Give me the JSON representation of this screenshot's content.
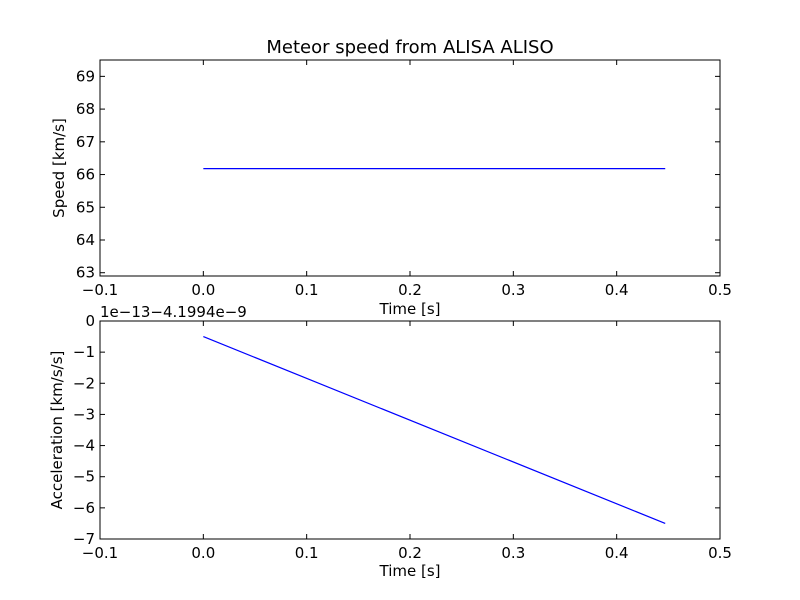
{
  "chart_data": [
    {
      "type": "line",
      "title": "Meteor speed from  ALISA ALISO",
      "xlabel": "Time [s]",
      "ylabel": "Speed [km/s]",
      "xlim": [
        -0.1,
        0.5
      ],
      "ylim": [
        62.9,
        69.5
      ],
      "xticks": [
        -0.1,
        0.0,
        0.1,
        0.2,
        0.3,
        0.4,
        0.5
      ],
      "xtick_labels": [
        "−0.1",
        "0.0",
        "0.1",
        "0.2",
        "0.3",
        "0.4",
        "0.5"
      ],
      "yticks": [
        63,
        64,
        65,
        66,
        67,
        68,
        69
      ],
      "ytick_labels": [
        "63",
        "64",
        "65",
        "66",
        "67",
        "68",
        "69"
      ],
      "offset_text": "",
      "series": [
        {
          "color": "#0000ff",
          "x": [
            0.0,
            0.447
          ],
          "y": [
            66.18,
            66.18
          ]
        }
      ],
      "grid": false
    },
    {
      "type": "line",
      "title": "",
      "xlabel": "Time [s]",
      "ylabel": "Acceleration [km/s/s]",
      "xlim": [
        -0.1,
        0.5
      ],
      "ylim": [
        -7,
        0
      ],
      "xticks": [
        -0.1,
        0.0,
        0.1,
        0.2,
        0.3,
        0.4,
        0.5
      ],
      "xtick_labels": [
        "−0.1",
        "0.0",
        "0.1",
        "0.2",
        "0.3",
        "0.4",
        "0.5"
      ],
      "yticks": [
        0,
        -1,
        -2,
        -3,
        -4,
        -5,
        -6,
        -7
      ],
      "ytick_labels": [
        "0",
        "−1",
        "−2",
        "−3",
        "−4",
        "−5",
        "−6",
        "−7"
      ],
      "offset_text": "1e−13−4.1994e−9",
      "series": [
        {
          "color": "#0000ff",
          "x": [
            0.0,
            0.447
          ],
          "y": [
            -0.5,
            -6.5
          ]
        }
      ],
      "grid": false
    }
  ]
}
